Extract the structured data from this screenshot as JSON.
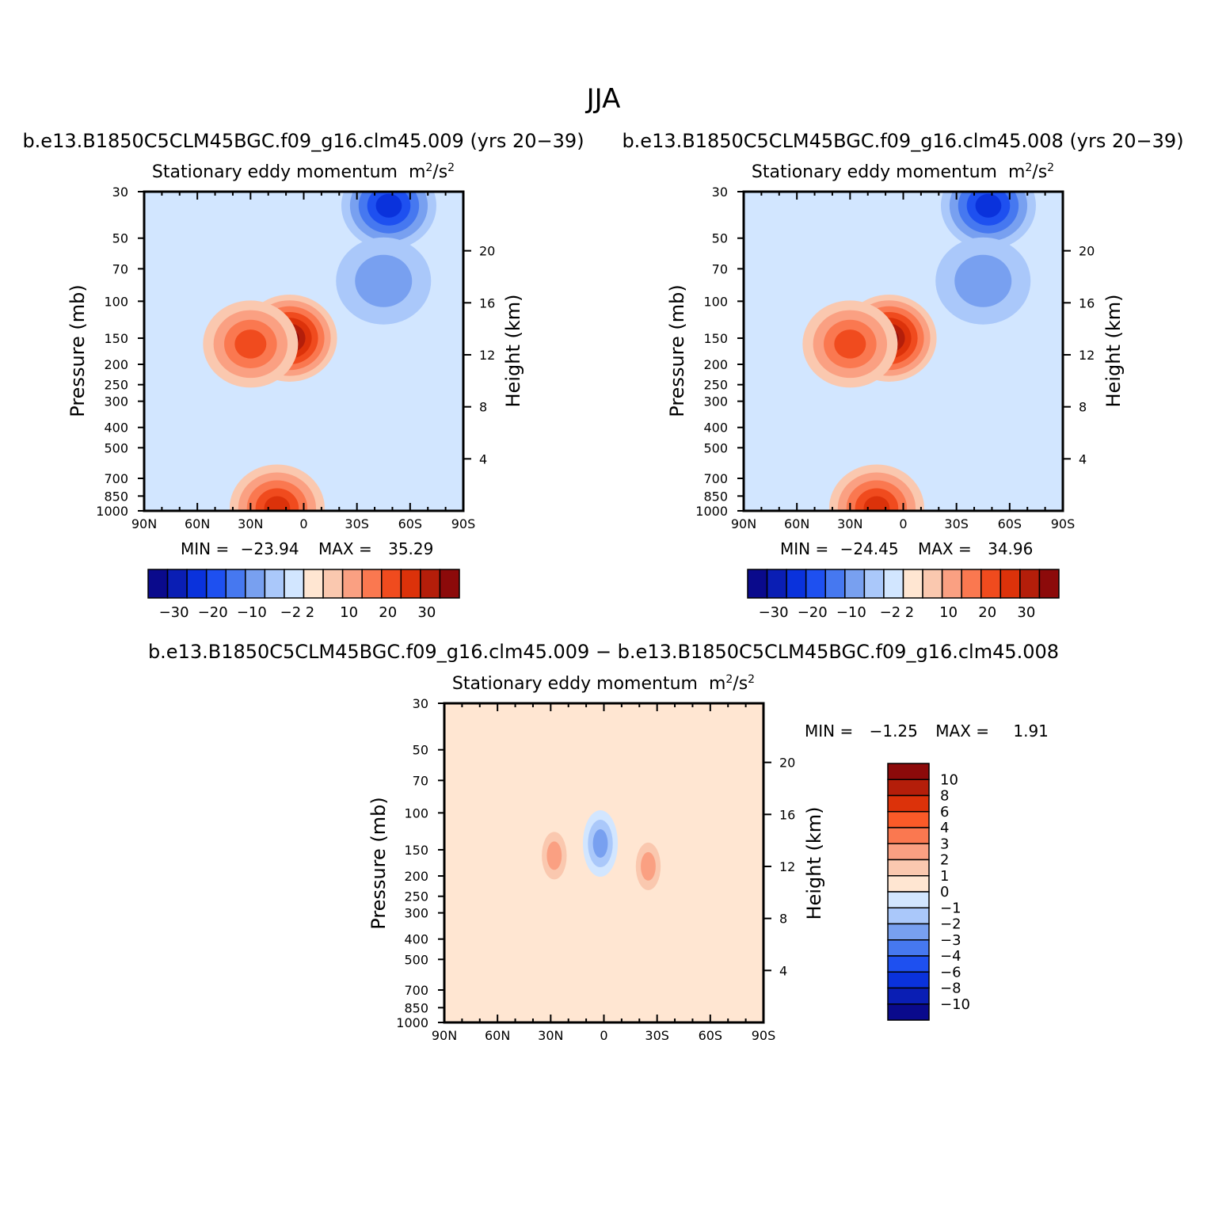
{
  "figure": {
    "title": "JJA"
  },
  "chart_data": [
    {
      "type": "contour",
      "case_title": "b.e13.B1850C5CLM45BGC.f09_g16.clm45.009 (yrs 20−39)",
      "title": "Stationary eddy momentum",
      "units": "m²/s²",
      "units_main": "m",
      "units_sup1": "2",
      "units_mid": "/s",
      "units_sup2": "2",
      "ylabel": "Pressure (mb)",
      "y2label": "Height (km)",
      "xticks": [
        "90N",
        "60N",
        "30N",
        "0",
        "30S",
        "60S",
        "90S"
      ],
      "xvals": [
        90,
        60,
        30,
        0,
        -30,
        -60,
        -90
      ],
      "yticks": [
        "30",
        "50",
        "70",
        "100",
        "150",
        "200",
        "250",
        "300",
        "400",
        "500",
        "700",
        "850",
        "1000"
      ],
      "yvals": [
        30,
        50,
        70,
        100,
        150,
        200,
        250,
        300,
        400,
        500,
        700,
        850,
        1000
      ],
      "y2ticks": [
        "20",
        "16",
        "12",
        "8",
        "4"
      ],
      "y2vals": [
        20,
        16,
        12,
        8,
        4
      ],
      "ylim": [
        1000,
        30
      ],
      "xlim": [
        90,
        -90
      ],
      "min_label": "MIN =",
      "min_value": "−23.94",
      "max_label": "MAX =",
      "max_value": "35.29",
      "levels": [
        "−30",
        "−20",
        "−10",
        "−2",
        "2",
        "10",
        "20",
        "30"
      ],
      "blobs": [
        {
          "lat": 8,
          "p": 150,
          "value": 35.29
        },
        {
          "lat": 30,
          "p": 160,
          "value": 18
        },
        {
          "lat": -48,
          "p": 35,
          "value": -23.94
        },
        {
          "lat": -45,
          "p": 80,
          "value": -8
        },
        {
          "lat": 15,
          "p": 970,
          "value": 25
        }
      ]
    },
    {
      "type": "contour",
      "case_title": "b.e13.B1850C5CLM45BGC.f09_g16.clm45.008 (yrs 20−39)",
      "title": "Stationary eddy momentum",
      "units": "m²/s²",
      "units_main": "m",
      "units_sup1": "2",
      "units_mid": "/s",
      "units_sup2": "2",
      "ylabel": "Pressure (mb)",
      "y2label": "Height (km)",
      "xticks": [
        "90N",
        "60N",
        "30N",
        "0",
        "30S",
        "60S",
        "90S"
      ],
      "xvals": [
        90,
        60,
        30,
        0,
        -30,
        -60,
        -90
      ],
      "yticks": [
        "30",
        "50",
        "70",
        "100",
        "150",
        "200",
        "250",
        "300",
        "400",
        "500",
        "700",
        "850",
        "1000"
      ],
      "yvals": [
        30,
        50,
        70,
        100,
        150,
        200,
        250,
        300,
        400,
        500,
        700,
        850,
        1000
      ],
      "y2ticks": [
        "20",
        "16",
        "12",
        "8",
        "4"
      ],
      "y2vals": [
        20,
        16,
        12,
        8,
        4
      ],
      "ylim": [
        1000,
        30
      ],
      "xlim": [
        90,
        -90
      ],
      "min_label": "MIN =",
      "min_value": "−24.45",
      "max_label": "MAX =",
      "max_value": "34.96",
      "levels": [
        "−30",
        "−20",
        "−10",
        "−2",
        "2",
        "10",
        "20",
        "30"
      ],
      "blobs": [
        {
          "lat": 8,
          "p": 150,
          "value": 34.96
        },
        {
          "lat": 30,
          "p": 160,
          "value": 18
        },
        {
          "lat": -48,
          "p": 35,
          "value": -24.45
        },
        {
          "lat": -45,
          "p": 80,
          "value": -8
        },
        {
          "lat": 15,
          "p": 970,
          "value": 25
        }
      ]
    },
    {
      "type": "contour",
      "case_title": "b.e13.B1850C5CLM45BGC.f09_g16.clm45.009 − b.e13.B1850C5CLM45BGC.f09_g16.clm45.008",
      "title": "Stationary eddy momentum",
      "units": "m²/s²",
      "units_main": "m",
      "units_sup1": "2",
      "units_mid": "/s",
      "units_sup2": "2",
      "ylabel": "Pressure (mb)",
      "y2label": "Height (km)",
      "xticks": [
        "90N",
        "60N",
        "30N",
        "0",
        "30S",
        "60S",
        "90S"
      ],
      "xvals": [
        90,
        60,
        30,
        0,
        -30,
        -60,
        -90
      ],
      "yticks": [
        "30",
        "50",
        "70",
        "100",
        "150",
        "200",
        "250",
        "300",
        "400",
        "500",
        "700",
        "850",
        "1000"
      ],
      "yvals": [
        30,
        50,
        70,
        100,
        150,
        200,
        250,
        300,
        400,
        500,
        700,
        850,
        1000
      ],
      "y2ticks": [
        "20",
        "16",
        "12",
        "8",
        "4"
      ],
      "y2vals": [
        20,
        16,
        12,
        8,
        4
      ],
      "ylim": [
        1000,
        30
      ],
      "xlim": [
        90,
        -90
      ],
      "min_label": "MIN =",
      "min_value": "−1.25",
      "max_label": "MAX =",
      "max_value": "1.91",
      "levels": [
        "10",
        "8",
        "6",
        "4",
        "3",
        "2",
        "1",
        "0",
        "−1",
        "−2",
        "−3",
        "−4",
        "−6",
        "−8",
        "−10"
      ],
      "blobs": [
        {
          "lat": 28,
          "p": 160,
          "value": 1.91
        },
        {
          "lat": 2,
          "p": 140,
          "value": -1.25
        },
        {
          "lat": -25,
          "p": 180,
          "value": 1.2
        }
      ]
    }
  ],
  "colors": {
    "diverging_12": [
      "#0a0a8c",
      "#0a1eb4",
      "#0a32dc",
      "#1e50f0",
      "#4678f0",
      "#78a0f0",
      "#aac8fa",
      "#d2e6ff",
      "#ffe6d2",
      "#fac8af",
      "#faa082",
      "#fa7850",
      "#f04b1e",
      "#dc320a",
      "#b41e0a",
      "#8c0a0a"
    ],
    "diff_14": [
      "#8c0a0a",
      "#b41e0a",
      "#dc320a",
      "#fa5a28",
      "#fa7850",
      "#faa082",
      "#fac8af",
      "#ffe6d2",
      "#d2e6ff",
      "#aac8fa",
      "#78a0f0",
      "#4678f0",
      "#1e50f0",
      "#0a32dc",
      "#0a1eb4",
      "#0a0a8c"
    ]
  }
}
